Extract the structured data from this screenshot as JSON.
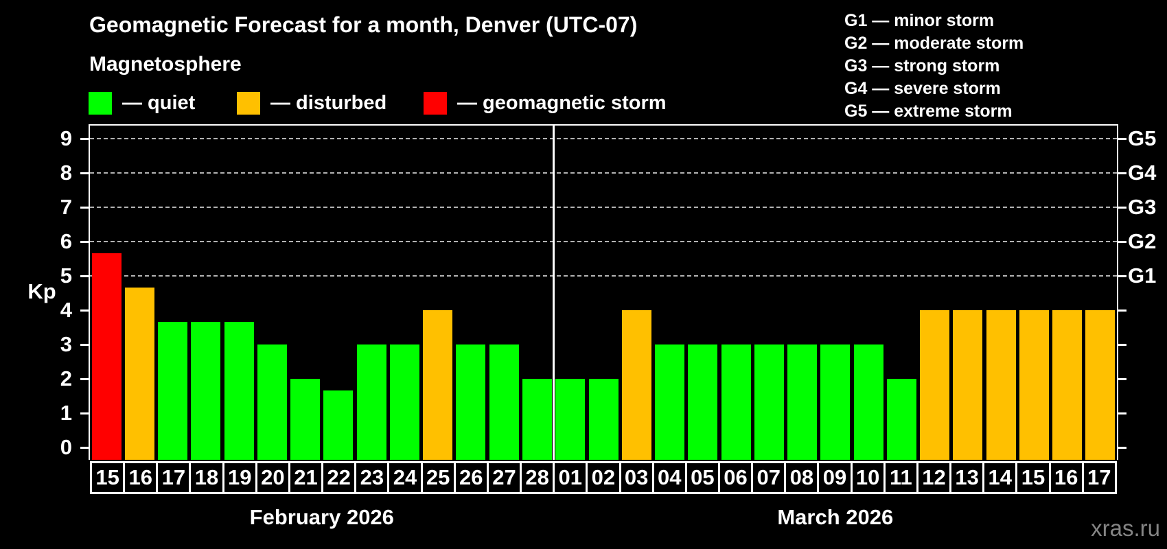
{
  "title": "Geomagnetic Forecast for a month, Denver (UTC-07)",
  "subtitle": "Magnetosphere",
  "legend": {
    "items": [
      {
        "status": "quiet",
        "label": "— quiet",
        "color": "#00ff00"
      },
      {
        "status": "disturbed",
        "label": "— disturbed",
        "color": "#ffc000"
      },
      {
        "status": "storm",
        "label": "— geomagnetic storm",
        "color": "#ff0000"
      }
    ]
  },
  "g_legend": [
    "G1 — minor storm",
    "G2 — moderate storm",
    "G3 — strong storm",
    "G4 — severe storm",
    "G5 — extreme storm"
  ],
  "watermark": "xras.ru",
  "chart_data": {
    "type": "bar",
    "title": "Geomagnetic Forecast for a month, Denver (UTC-07)",
    "xlabel": "",
    "ylabel": "Kp",
    "ylim": [
      0,
      9
    ],
    "grid": "dashed horizontal lines at Kp 5-9 only",
    "y_ticks": [
      0,
      1,
      2,
      3,
      4,
      5,
      6,
      7,
      8,
      9
    ],
    "right_axis_labels": [
      {
        "level": 5,
        "label": "G1"
      },
      {
        "level": 6,
        "label": "G2"
      },
      {
        "level": 7,
        "label": "G3"
      },
      {
        "level": 8,
        "label": "G4"
      },
      {
        "level": 9,
        "label": "G5"
      }
    ],
    "categories": [
      "15",
      "16",
      "17",
      "18",
      "19",
      "20",
      "21",
      "22",
      "23",
      "24",
      "25",
      "26",
      "27",
      "28",
      "01",
      "02",
      "03",
      "04",
      "05",
      "06",
      "07",
      "08",
      "09",
      "10",
      "11",
      "12",
      "13",
      "14",
      "15",
      "16",
      "17"
    ],
    "values": [
      5.67,
      4.67,
      3.67,
      3.67,
      3.67,
      3,
      2,
      1.67,
      3,
      3,
      4,
      3,
      3,
      2,
      2,
      2,
      4,
      3,
      3,
      3,
      3,
      3,
      3,
      3,
      2,
      4,
      4,
      4,
      4,
      4,
      4
    ],
    "statuses": [
      "storm",
      "disturbed",
      "quiet",
      "quiet",
      "quiet",
      "quiet",
      "quiet",
      "quiet",
      "quiet",
      "quiet",
      "disturbed",
      "quiet",
      "quiet",
      "quiet",
      "quiet",
      "quiet",
      "disturbed",
      "quiet",
      "quiet",
      "quiet",
      "quiet",
      "quiet",
      "quiet",
      "quiet",
      "quiet",
      "disturbed",
      "disturbed",
      "disturbed",
      "disturbed",
      "disturbed",
      "disturbed"
    ],
    "status_colors": {
      "quiet": "#00ff00",
      "disturbed": "#ffc000",
      "storm": "#ff0000"
    },
    "months": [
      {
        "label": "February 2026",
        "days": 14
      },
      {
        "label": "March 2026",
        "days": 17
      }
    ]
  }
}
